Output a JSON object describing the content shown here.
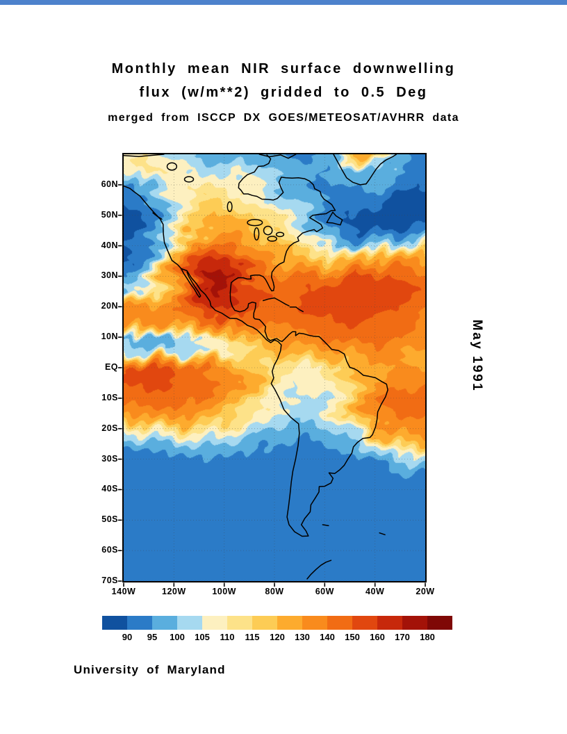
{
  "header": {
    "title_line1": "Monthly mean NIR surface downwelling",
    "title_line2": "flux (w/m**2) gridded to 0.5 Deg",
    "subtitle": "merged from ISCCP DX GOES/METEOSAT/AVHRR data"
  },
  "side": {
    "date_label": "May 1991"
  },
  "footer": {
    "credit": "University of Maryland"
  },
  "chart_data": {
    "type": "heatmap",
    "title": "Monthly mean NIR surface downwelling flux (w/m**2) gridded to 0.5 Deg",
    "subtitle": "merged from ISCCP DX GOES/METEOSAT/AVHRR data",
    "date": "May 1991",
    "units": "w/m**2",
    "lon_range": [
      -140,
      -20
    ],
    "lat_range": [
      -70,
      70
    ],
    "x_axis": {
      "label": "longitude",
      "ticks": [
        {
          "label": "140W",
          "value": -140
        },
        {
          "label": "120W",
          "value": -120
        },
        {
          "label": "100W",
          "value": -100
        },
        {
          "label": "80W",
          "value": -80
        },
        {
          "label": "60W",
          "value": -60
        },
        {
          "label": "40W",
          "value": -40
        },
        {
          "label": "20W",
          "value": -20
        }
      ]
    },
    "y_axis": {
      "label": "latitude",
      "ticks": [
        {
          "label": "60N",
          "value": 60
        },
        {
          "label": "50N",
          "value": 50
        },
        {
          "label": "40N",
          "value": 40
        },
        {
          "label": "30N",
          "value": 30
        },
        {
          "label": "20N",
          "value": 20
        },
        {
          "label": "10N",
          "value": 10
        },
        {
          "label": "EQ",
          "value": 0
        },
        {
          "label": "10S",
          "value": -10
        },
        {
          "label": "20S",
          "value": -20
        },
        {
          "label": "30S",
          "value": -30
        },
        {
          "label": "40S",
          "value": -40
        },
        {
          "label": "50S",
          "value": -50
        },
        {
          "label": "60S",
          "value": -60
        },
        {
          "label": "70S",
          "value": -70
        }
      ]
    },
    "colorbar": {
      "labels": [
        "90",
        "95",
        "100",
        "105",
        "110",
        "115",
        "120",
        "130",
        "140",
        "150",
        "160",
        "170",
        "180"
      ],
      "thresholds": [
        90,
        95,
        100,
        105,
        110,
        115,
        120,
        130,
        140,
        150,
        160,
        170,
        180
      ],
      "colors": [
        "#10519f",
        "#2b7bc7",
        "#5aaede",
        "#a6d9f0",
        "#fdf0c0",
        "#fde289",
        "#fdcc55",
        "#fdab2e",
        "#f98b1d",
        "#f16c14",
        "#e1470f",
        "#c7280b",
        "#a31208",
        "#7f0806"
      ]
    },
    "grid": {
      "lon_start": -140,
      "lon_step": 10,
      "cols": 13,
      "lat_start": 70,
      "lat_step": -5,
      "rows": 29,
      "values": [
        [
          107,
          110,
          103,
          98,
          95,
          95,
          96,
          94,
          96,
          120,
          128,
          98,
          94
        ],
        [
          108,
          112,
          107,
          103,
          102,
          106,
          99,
          96,
          95,
          98,
          100,
          94,
          91
        ],
        [
          93,
          97,
          106,
          110,
          108,
          106,
          101,
          97,
          94,
          96,
          97,
          93,
          90
        ],
        [
          90,
          94,
          107,
          115,
          114,
          110,
          104,
          99,
          94,
          93,
          92,
          89,
          88
        ],
        [
          88,
          92,
          104,
          118,
          121,
          116,
          110,
          103,
          94,
          90,
          89,
          88,
          88
        ],
        [
          87,
          91,
          103,
          120,
          126,
          122,
          115,
          107,
          96,
          90,
          89,
          90,
          92
        ],
        [
          88,
          94,
          112,
          140,
          144,
          132,
          121,
          113,
          102,
          97,
          99,
          104,
          110
        ],
        [
          90,
          97,
          125,
          158,
          165,
          142,
          130,
          124,
          117,
          124,
          133,
          137,
          131
        ],
        [
          94,
          102,
          130,
          170,
          176,
          150,
          141,
          141,
          142,
          150,
          154,
          150,
          141
        ],
        [
          100,
          110,
          128,
          167,
          173,
          154,
          147,
          150,
          155,
          160,
          160,
          154,
          145
        ],
        [
          133,
          130,
          133,
          152,
          163,
          150,
          145,
          148,
          155,
          159,
          156,
          149,
          141
        ],
        [
          140,
          139,
          134,
          142,
          151,
          146,
          141,
          145,
          150,
          152,
          149,
          144,
          138
        ],
        [
          99,
          97,
          99,
          103,
          112,
          124,
          132,
          136,
          141,
          144,
          144,
          139,
          134
        ],
        [
          104,
          101,
          100,
          103,
          108,
          114,
          119,
          122,
          126,
          131,
          135,
          131,
          128
        ],
        [
          149,
          151,
          149,
          143,
          134,
          120,
          111,
          108,
          111,
          117,
          126,
          131,
          128
        ],
        [
          151,
          153,
          151,
          146,
          138,
          126,
          111,
          105,
          108,
          116,
          131,
          140,
          138
        ],
        [
          146,
          148,
          146,
          140,
          130,
          118,
          108,
          104,
          105,
          113,
          136,
          145,
          142
        ],
        [
          131,
          135,
          137,
          131,
          121,
          111,
          105,
          102,
          105,
          115,
          137,
          144,
          140
        ],
        [
          106,
          110,
          114,
          114,
          109,
          104,
          100,
          97,
          99,
          106,
          124,
          137,
          134
        ],
        [
          96,
          98,
          101,
          102,
          100,
          98,
          95,
          94,
          95,
          98,
          106,
          117,
          124
        ],
        [
          91,
          92,
          93,
          94,
          94,
          93,
          92,
          92,
          92,
          93,
          96,
          100,
          105
        ],
        [
          91,
          91,
          92,
          92,
          92,
          92,
          91,
          91,
          91,
          92,
          92,
          93,
          95
        ],
        [
          92,
          92,
          92,
          92,
          92,
          92,
          92,
          92,
          92,
          92,
          92,
          92,
          93
        ],
        [
          92,
          92,
          92,
          92,
          92,
          92,
          92,
          92,
          92,
          92,
          92,
          92,
          92
        ],
        [
          92,
          92,
          92,
          92,
          92,
          92,
          92,
          92,
          92,
          92,
          92,
          92,
          92
        ],
        [
          92,
          92,
          92,
          92,
          92,
          92,
          92,
          92,
          92,
          92,
          92,
          92,
          92
        ],
        [
          92,
          92,
          92,
          92,
          92,
          92,
          92,
          92,
          92,
          92,
          92,
          92,
          92
        ],
        [
          92,
          92,
          92,
          92,
          92,
          92,
          92,
          92,
          92,
          92,
          92,
          92,
          92
        ],
        [
          92,
          92,
          92,
          92,
          92,
          92,
          92,
          92,
          92,
          92,
          92,
          92,
          92
        ]
      ]
    }
  }
}
